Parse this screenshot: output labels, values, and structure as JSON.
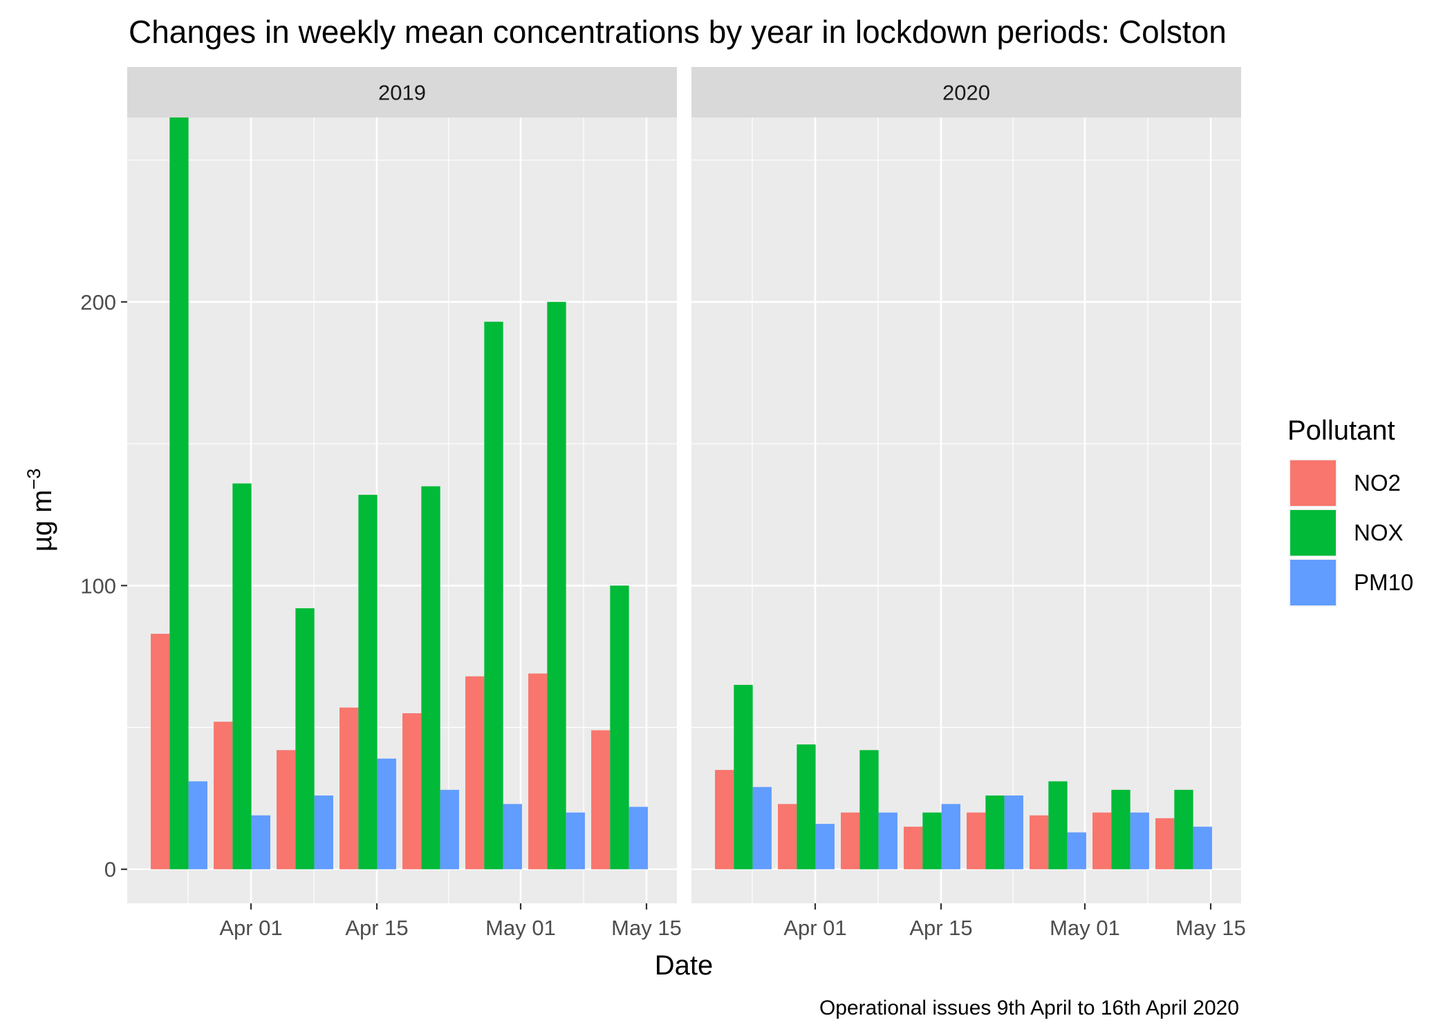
{
  "chart_data": {
    "type": "bar",
    "title": "Changes in weekly mean concentrations by year in lockdown periods: Colston",
    "xlabel": "Date",
    "ylabel": "µg m",
    "ylabel_superscript": "−3",
    "caption": "Operational issues 9th April to 16th April 2020",
    "ylim": [
      -12,
      265
    ],
    "y_ticks": [
      0,
      100,
      200
    ],
    "y_tick_labels": [
      "0",
      "100",
      "200"
    ],
    "x_tick_labels": [
      "Apr 01",
      "Apr 15",
      "May 01",
      "May 15"
    ],
    "grid": true,
    "legend": {
      "title": "Pollutant",
      "position": "right"
    },
    "colors": {
      "NO2": "#F8766D",
      "NOX": "#00BA38",
      "PM10": "#619CFF"
    },
    "panels": [
      {
        "strip": "2019",
        "x_tick_dates": [
          "2019-04-01",
          "2019-04-15",
          "2019-05-01",
          "2019-05-15"
        ],
        "weeks": [
          "2019-03-24",
          "2019-03-31",
          "2019-04-07",
          "2019-04-14",
          "2019-04-21",
          "2019-04-28",
          "2019-05-05",
          "2019-05-12"
        ],
        "series": [
          {
            "name": "NO2",
            "values": [
              83,
              52,
              42,
              57,
              55,
              68,
              69,
              49
            ]
          },
          {
            "name": "NOX",
            "values": [
              265,
              136,
              92,
              132,
              135,
              193,
              200,
              100
            ]
          },
          {
            "name": "PM10",
            "values": [
              31,
              19,
              26,
              39,
              28,
              23,
              20,
              22
            ]
          }
        ]
      },
      {
        "strip": "2020",
        "x_tick_dates": [
          "2020-04-01",
          "2020-04-15",
          "2020-05-01",
          "2020-05-15"
        ],
        "weeks": [
          "2020-03-24",
          "2020-03-31",
          "2020-04-07",
          "2020-04-14",
          "2020-04-21",
          "2020-04-28",
          "2020-05-05",
          "2020-05-12"
        ],
        "series": [
          {
            "name": "NO2",
            "values": [
              35,
              23,
              20,
              15,
              20,
              19,
              20,
              18
            ]
          },
          {
            "name": "NOX",
            "values": [
              65,
              44,
              42,
              20,
              26,
              31,
              28,
              28
            ]
          },
          {
            "name": "PM10",
            "values": [
              29,
              16,
              20,
              23,
              26,
              13,
              20,
              15
            ]
          }
        ]
      }
    ]
  }
}
